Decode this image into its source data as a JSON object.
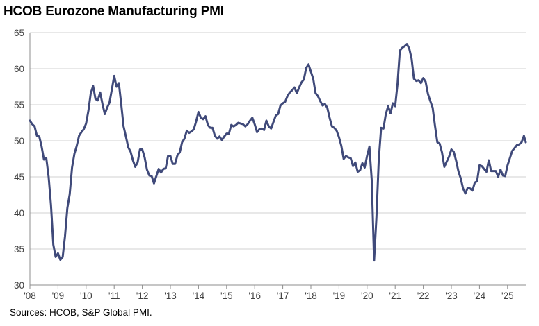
{
  "chart_data": {
    "type": "line",
    "title": "HCOB Eurozone Manufacturing PMI",
    "source": "Sources: HCOB, S&P Global PMI.",
    "xlabel": "",
    "ylabel": "",
    "ylim": [
      30,
      65
    ],
    "yticks": [
      30,
      35,
      40,
      45,
      50,
      55,
      60,
      65
    ],
    "xlim": [
      "2008-01",
      "2025-09"
    ],
    "xticks": [
      "'08",
      "'09",
      "'10",
      "'11",
      "'12",
      "'13",
      "'14",
      "'15",
      "'16",
      "'17",
      "'18",
      "'19",
      "'20",
      "'21",
      "'22",
      "'23",
      "'24",
      "'25"
    ],
    "grid": "horizontal",
    "line_color": "#404a7a",
    "series": [
      {
        "name": "",
        "x": [
          "2008-01",
          "2008-02",
          "2008-03",
          "2008-04",
          "2008-05",
          "2008-06",
          "2008-07",
          "2008-08",
          "2008-09",
          "2008-10",
          "2008-11",
          "2008-12",
          "2009-01",
          "2009-02",
          "2009-03",
          "2009-04",
          "2009-05",
          "2009-06",
          "2009-07",
          "2009-08",
          "2009-09",
          "2009-10",
          "2009-11",
          "2009-12",
          "2010-01",
          "2010-02",
          "2010-03",
          "2010-04",
          "2010-05",
          "2010-06",
          "2010-07",
          "2010-08",
          "2010-09",
          "2010-10",
          "2010-11",
          "2010-12",
          "2011-01",
          "2011-02",
          "2011-03",
          "2011-04",
          "2011-05",
          "2011-06",
          "2011-07",
          "2011-08",
          "2011-09",
          "2011-10",
          "2011-11",
          "2011-12",
          "2012-01",
          "2012-02",
          "2012-03",
          "2012-04",
          "2012-05",
          "2012-06",
          "2012-07",
          "2012-08",
          "2012-09",
          "2012-10",
          "2012-11",
          "2012-12",
          "2013-01",
          "2013-02",
          "2013-03",
          "2013-04",
          "2013-05",
          "2013-06",
          "2013-07",
          "2013-08",
          "2013-09",
          "2013-10",
          "2013-11",
          "2013-12",
          "2014-01",
          "2014-02",
          "2014-03",
          "2014-04",
          "2014-05",
          "2014-06",
          "2014-07",
          "2014-08",
          "2014-09",
          "2014-10",
          "2014-11",
          "2014-12",
          "2015-01",
          "2015-02",
          "2015-03",
          "2015-04",
          "2015-05",
          "2015-06",
          "2015-07",
          "2015-08",
          "2015-09",
          "2015-10",
          "2015-11",
          "2015-12",
          "2016-01",
          "2016-02",
          "2016-03",
          "2016-04",
          "2016-05",
          "2016-06",
          "2016-07",
          "2016-08",
          "2016-09",
          "2016-10",
          "2016-11",
          "2016-12",
          "2017-01",
          "2017-02",
          "2017-03",
          "2017-04",
          "2017-05",
          "2017-06",
          "2017-07",
          "2017-08",
          "2017-09",
          "2017-10",
          "2017-11",
          "2017-12",
          "2018-01",
          "2018-02",
          "2018-03",
          "2018-04",
          "2018-05",
          "2018-06",
          "2018-07",
          "2018-08",
          "2018-09",
          "2018-10",
          "2018-11",
          "2018-12",
          "2019-01",
          "2019-02",
          "2019-03",
          "2019-04",
          "2019-05",
          "2019-06",
          "2019-07",
          "2019-08",
          "2019-09",
          "2019-10",
          "2019-11",
          "2019-12",
          "2020-01",
          "2020-02",
          "2020-03",
          "2020-04",
          "2020-05",
          "2020-06",
          "2020-07",
          "2020-08",
          "2020-09",
          "2020-10",
          "2020-11",
          "2020-12",
          "2021-01",
          "2021-02",
          "2021-03",
          "2021-04",
          "2021-05",
          "2021-06",
          "2021-07",
          "2021-08",
          "2021-09",
          "2021-10",
          "2021-11",
          "2021-12",
          "2022-01",
          "2022-02",
          "2022-03",
          "2022-04",
          "2022-05",
          "2022-06",
          "2022-07",
          "2022-08",
          "2022-09",
          "2022-10",
          "2022-11",
          "2022-12",
          "2023-01",
          "2023-02",
          "2023-03",
          "2023-04",
          "2023-05",
          "2023-06",
          "2023-07",
          "2023-08",
          "2023-09",
          "2023-10",
          "2023-11",
          "2023-12",
          "2024-01",
          "2024-02",
          "2024-03",
          "2024-04",
          "2024-05",
          "2024-06",
          "2024-07",
          "2024-08",
          "2024-09",
          "2024-10",
          "2024-11",
          "2024-12",
          "2025-01",
          "2025-02",
          "2025-03",
          "2025-04",
          "2025-05",
          "2025-06",
          "2025-07",
          "2025-08",
          "2025-09"
        ],
        "values": [
          52.8,
          52.3,
          52.0,
          50.7,
          50.6,
          49.2,
          47.4,
          47.6,
          45.0,
          41.1,
          35.6,
          33.9,
          34.4,
          33.5,
          33.9,
          36.8,
          40.7,
          42.6,
          46.3,
          48.2,
          49.3,
          50.7,
          51.2,
          51.6,
          52.4,
          54.2,
          56.6,
          57.6,
          55.8,
          55.6,
          56.7,
          55.1,
          53.7,
          54.6,
          55.3,
          57.1,
          59.0,
          57.5,
          58.0,
          55.1,
          52.0,
          50.6,
          49.1,
          48.5,
          47.3,
          46.4,
          47.0,
          48.8,
          48.8,
          47.7,
          46.0,
          45.2,
          45.1,
          44.1,
          45.1,
          46.1,
          45.6,
          46.1,
          46.2,
          47.9,
          47.9,
          46.8,
          46.8,
          48.0,
          48.4,
          49.8,
          50.3,
          51.4,
          51.1,
          51.3,
          51.6,
          52.7,
          54.0,
          53.2,
          53.0,
          53.4,
          52.2,
          51.8,
          51.8,
          50.7,
          50.3,
          50.6,
          50.1,
          50.6,
          51.0,
          51.0,
          52.2,
          52.0,
          52.2,
          52.5,
          52.4,
          52.3,
          52.0,
          52.3,
          52.8,
          53.2,
          52.3,
          51.2,
          51.6,
          51.7,
          51.5,
          52.8,
          52.0,
          51.7,
          52.6,
          53.5,
          53.7,
          54.9,
          55.2,
          55.4,
          56.2,
          56.7,
          57.0,
          57.4,
          56.6,
          57.4,
          58.1,
          58.5,
          60.1,
          60.6,
          59.6,
          58.6,
          56.6,
          56.2,
          55.5,
          54.9,
          55.1,
          54.6,
          53.2,
          52.0,
          51.8,
          51.4,
          50.5,
          49.3,
          47.5,
          47.9,
          47.7,
          47.6,
          46.5,
          47.0,
          45.7,
          45.9,
          46.9,
          46.3,
          47.9,
          49.2,
          44.5,
          33.4,
          39.4,
          47.4,
          51.8,
          51.7,
          53.7,
          54.8,
          53.8,
          55.2,
          54.8,
          57.9,
          62.5,
          62.9,
          63.1,
          63.4,
          62.8,
          61.4,
          58.6,
          58.3,
          58.4,
          58.0,
          58.7,
          58.2,
          56.5,
          55.5,
          54.6,
          52.1,
          49.8,
          49.6,
          48.4,
          46.4,
          47.1,
          47.8,
          48.8,
          48.5,
          47.3,
          45.8,
          44.8,
          43.4,
          42.7,
          43.5,
          43.4,
          43.1,
          44.2,
          44.4,
          46.6,
          46.5,
          46.1,
          45.7,
          47.3,
          45.8,
          45.8,
          45.8,
          45.0,
          46.0,
          45.2,
          45.1,
          46.6,
          47.6,
          48.6,
          49.0,
          49.4,
          49.5,
          49.8,
          50.7,
          49.8
        ]
      }
    ]
  }
}
